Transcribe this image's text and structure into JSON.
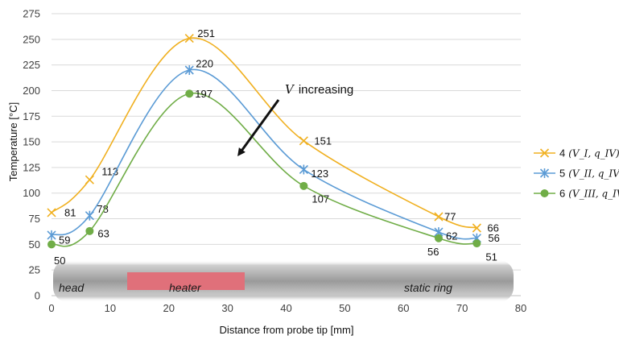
{
  "chart_data": {
    "type": "line",
    "xlabel": "Distance from probe tip [mm]",
    "ylabel": "Temperature [°C]",
    "xlim": [
      0,
      80
    ],
    "ylim": [
      0,
      275
    ],
    "x_ticks": [
      "0",
      "10",
      "20",
      "30",
      "40",
      "50",
      "60",
      "70",
      "80"
    ],
    "y_ticks": [
      "0",
      "25",
      "50",
      "75",
      "100",
      "125",
      "150",
      "175",
      "200",
      "225",
      "250",
      "275"
    ],
    "series": [
      {
        "id": "4",
        "name": "4",
        "legend_math": "(V_I, q_IV)",
        "color": "#f0b020",
        "marker": "x",
        "x": [
          0,
          6.5,
          23.5,
          43,
          66,
          72.5
        ],
        "values": [
          81,
          113,
          251,
          151,
          77,
          66
        ],
        "labels": [
          "81",
          "113",
          "251",
          "151",
          "77",
          "66"
        ]
      },
      {
        "id": "5",
        "name": "5",
        "legend_math": "(V_II, q_IV)",
        "color": "#5b9bd5",
        "marker": "asterisk",
        "x": [
          0,
          6.5,
          23.5,
          43,
          66,
          72.5
        ],
        "values": [
          59,
          78,
          220,
          123,
          62,
          56
        ],
        "labels": [
          "59",
          "78",
          "220",
          "123",
          "62",
          "56"
        ]
      },
      {
        "id": "6",
        "name": "6",
        "legend_math": "(V_III, q_IV)",
        "color": "#70ad47",
        "marker": "circle",
        "x": [
          0,
          6.5,
          23.5,
          43,
          66,
          72.5
        ],
        "values": [
          50,
          63,
          197,
          107,
          56,
          51
        ],
        "labels": [
          "50",
          "63",
          "197",
          "107",
          "56",
          "51"
        ]
      }
    ],
    "annotation": {
      "text": "increasing",
      "symbol": "V"
    },
    "probe_labels": [
      "head",
      "heater",
      "static ring"
    ],
    "colors": {
      "grid": "#d9d9d9",
      "heater": "#e0707a",
      "probe_body": "#b8b8b8"
    }
  }
}
